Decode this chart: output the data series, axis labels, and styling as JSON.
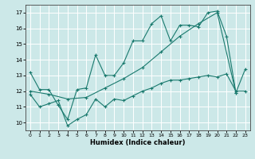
{
  "xlabel": "Humidex (Indice chaleur)",
  "ylabel": "",
  "bg_color": "#cce8e8",
  "grid_color": "#ffffff",
  "line_color": "#1a7a6e",
  "xlim": [
    -0.5,
    23.5
  ],
  "ylim": [
    9.5,
    17.5
  ],
  "xticks": [
    0,
    1,
    2,
    3,
    4,
    5,
    6,
    7,
    8,
    9,
    10,
    11,
    12,
    13,
    14,
    15,
    16,
    17,
    18,
    19,
    20,
    21,
    22,
    23
  ],
  "yticks": [
    10,
    11,
    12,
    13,
    14,
    15,
    16,
    17
  ],
  "line1_x": [
    0,
    1,
    2,
    3,
    4,
    5,
    6,
    7,
    8,
    9,
    10,
    11,
    12,
    13,
    14,
    15,
    16,
    17,
    18,
    19,
    20,
    21,
    22,
    23
  ],
  "line1_y": [
    13.2,
    12.1,
    12.1,
    11.1,
    10.2,
    12.1,
    12.2,
    14.3,
    13.0,
    13.0,
    13.8,
    15.2,
    15.2,
    16.3,
    16.8,
    15.2,
    16.2,
    16.2,
    16.1,
    17.0,
    17.1,
    15.5,
    11.9,
    13.4
  ],
  "line2_x": [
    0,
    1,
    2,
    3,
    4,
    5,
    6,
    7,
    8,
    9,
    10,
    11,
    12,
    13,
    14,
    15,
    16,
    17,
    18,
    19,
    20,
    21,
    22,
    23
  ],
  "line2_y": [
    11.8,
    11.0,
    11.2,
    11.4,
    9.8,
    10.2,
    10.5,
    11.5,
    11.0,
    11.5,
    11.4,
    11.7,
    12.0,
    12.2,
    12.5,
    12.7,
    12.7,
    12.8,
    12.9,
    13.0,
    12.9,
    13.1,
    12.0,
    12.0
  ],
  "line3_x": [
    0,
    2,
    4,
    6,
    8,
    10,
    12,
    14,
    16,
    18,
    20,
    22
  ],
  "line3_y": [
    12.0,
    11.8,
    11.5,
    11.6,
    12.2,
    12.8,
    13.5,
    14.5,
    15.5,
    16.3,
    17.0,
    11.9
  ]
}
